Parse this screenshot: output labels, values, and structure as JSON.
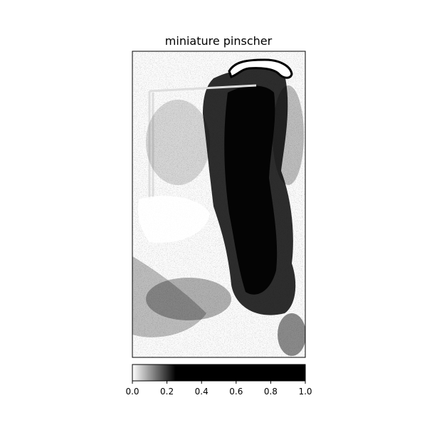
{
  "chart_data": {
    "type": "heatmap",
    "title": "miniature pinscher",
    "xlabel": "",
    "ylabel": "",
    "x_ticks_visible": false,
    "y_ticks_visible": false,
    "colormap": "gray_r",
    "colorbar": {
      "orientation": "horizontal",
      "placement": "bottom",
      "range": [
        0.0,
        1.0
      ],
      "ticks": [
        0.0,
        0.2,
        0.4,
        0.6,
        0.8,
        1.0
      ],
      "tick_labels": [
        "0.0",
        "0.2",
        "0.4",
        "0.6",
        "0.8",
        "1.0"
      ],
      "saturation_value": 0.25
    },
    "image_aspect": "portrait",
    "dominant_pattern": "high saliency (black) on central-right dog body; low saliency (white) on left background; shelf and handle outlines faintly visible",
    "colors": {
      "low": "#ffffff",
      "high": "#000000",
      "frame": "#000000"
    }
  }
}
